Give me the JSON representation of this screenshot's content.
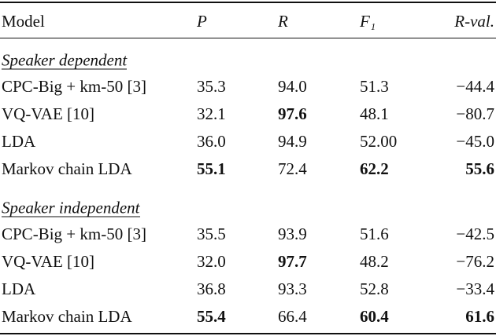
{
  "table": {
    "header": [
      "Model",
      "P",
      "R",
      "F₁",
      "R-val."
    ],
    "sections": [
      {
        "label": "Speaker dependent",
        "rows": [
          [
            "CPC-Big + km-50 [3]",
            "35.3",
            "94.0",
            "51.3",
            "−44.4"
          ],
          [
            "VQ-VAE [10]",
            "32.1",
            "97.6",
            "48.1",
            "−80.7"
          ],
          [
            "LDA",
            "36.0",
            "94.9",
            "52.00",
            "−45.0"
          ],
          [
            "Markov chain LDA",
            "55.1",
            "72.4",
            "62.2",
            "55.6"
          ]
        ],
        "bold": [
          [
            1,
            2
          ],
          [
            3,
            1
          ],
          [
            3,
            3
          ],
          [
            3,
            4
          ]
        ]
      },
      {
        "label": "Speaker independent",
        "rows": [
          [
            "CPC-Big + km-50 [3]",
            "35.5",
            "93.9",
            "51.6",
            "−42.5"
          ],
          [
            "VQ-VAE [10]",
            "32.0",
            "97.7",
            "48.2",
            "−76.2"
          ],
          [
            "LDA",
            "36.8",
            "93.3",
            "52.8",
            "−33.4"
          ],
          [
            "Markov chain LDA",
            "55.4",
            "66.4",
            "60.4",
            "61.6"
          ]
        ],
        "bold": [
          [
            1,
            2
          ],
          [
            3,
            1
          ],
          [
            3,
            3
          ],
          [
            3,
            4
          ]
        ]
      }
    ]
  }
}
